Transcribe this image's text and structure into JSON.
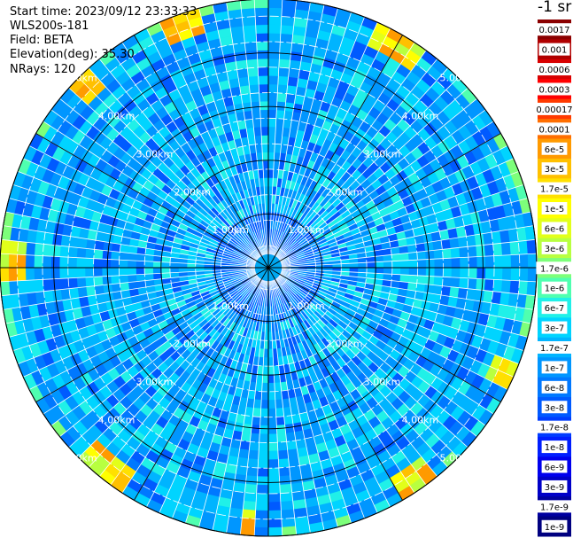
{
  "header": {
    "start_time": "Start time: 2023/09/12 23:33:33",
    "instrument": "WLS200s-181",
    "field": "Field: BETA",
    "elevation": "Elevation(deg): 35.30",
    "nrays": "NRays: 120"
  },
  "colorbar": {
    "unit": "-1 sr",
    "labels": [
      "0.0017",
      "0.001",
      "0.0006",
      "0.0003",
      "0.00017",
      "0.0001",
      "6e-5",
      "3e-5",
      "1.7e-5",
      "1e-5",
      "6e-6",
      "3e-6",
      "1.7e-6",
      "1e-6",
      "6e-7",
      "3e-7",
      "1.7e-7",
      "1e-7",
      "6e-8",
      "3e-8",
      "1.7e-8",
      "1e-8",
      "6e-9",
      "3e-9",
      "1.7e-9",
      "1e-9"
    ],
    "colors": [
      "#8b0000",
      "#b00000",
      "#d80000",
      "#ff0000",
      "#ff3a00",
      "#ff6e00",
      "#ff9a00",
      "#ffc000",
      "#ffe000",
      "#ffff00",
      "#e2ff1a",
      "#b8ff40",
      "#7dff7a",
      "#4fffb0",
      "#20f0e8",
      "#00d4ff",
      "#00b4ff",
      "#0096ff",
      "#0078ff",
      "#005aff",
      "#003cff",
      "#001eff",
      "#0000ee",
      "#0000c8",
      "#0000a0",
      "#000080"
    ]
  },
  "chart_data": {
    "type": "polar-scan",
    "n_rays": 120,
    "range_rings_km": [
      1,
      2,
      3,
      4,
      5
    ],
    "range_labels": [
      "1.00km",
      "2.00km",
      "3.00km",
      "4.00km",
      "5.00km"
    ],
    "max_range_km": 5.0,
    "field": "BETA",
    "elevation_deg": 35.3
  }
}
